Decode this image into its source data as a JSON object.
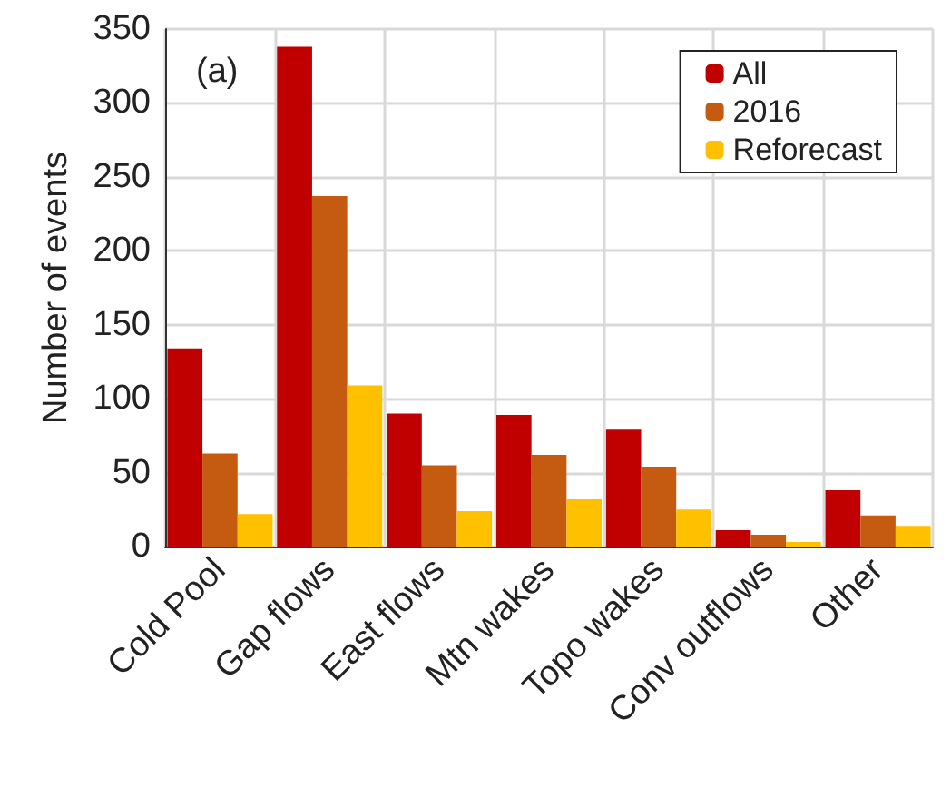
{
  "chart_data": {
    "type": "bar",
    "ylabel": "Number of events",
    "categories": [
      "Cold Pool",
      "Gap flows",
      "East flows",
      "Mtn wakes",
      "Topo wakes",
      "Conv outflows",
      "Other"
    ],
    "series": [
      {
        "name": "All",
        "color": "#c00000",
        "values": [
          134,
          338,
          90,
          89,
          79,
          11,
          38
        ]
      },
      {
        "name": "2016",
        "color": "#c55a11",
        "values": [
          63,
          237,
          55,
          62,
          54,
          8,
          21
        ]
      },
      {
        "name": "Reforecast",
        "color": "#ffc000",
        "values": [
          22,
          109,
          24,
          32,
          25,
          3,
          14
        ]
      }
    ],
    "ylim": [
      0,
      350
    ],
    "yticks": [
      0,
      50,
      100,
      150,
      200,
      250,
      300,
      350
    ],
    "grid": true,
    "legend": "top right",
    "annotations": [
      "(a)"
    ]
  }
}
